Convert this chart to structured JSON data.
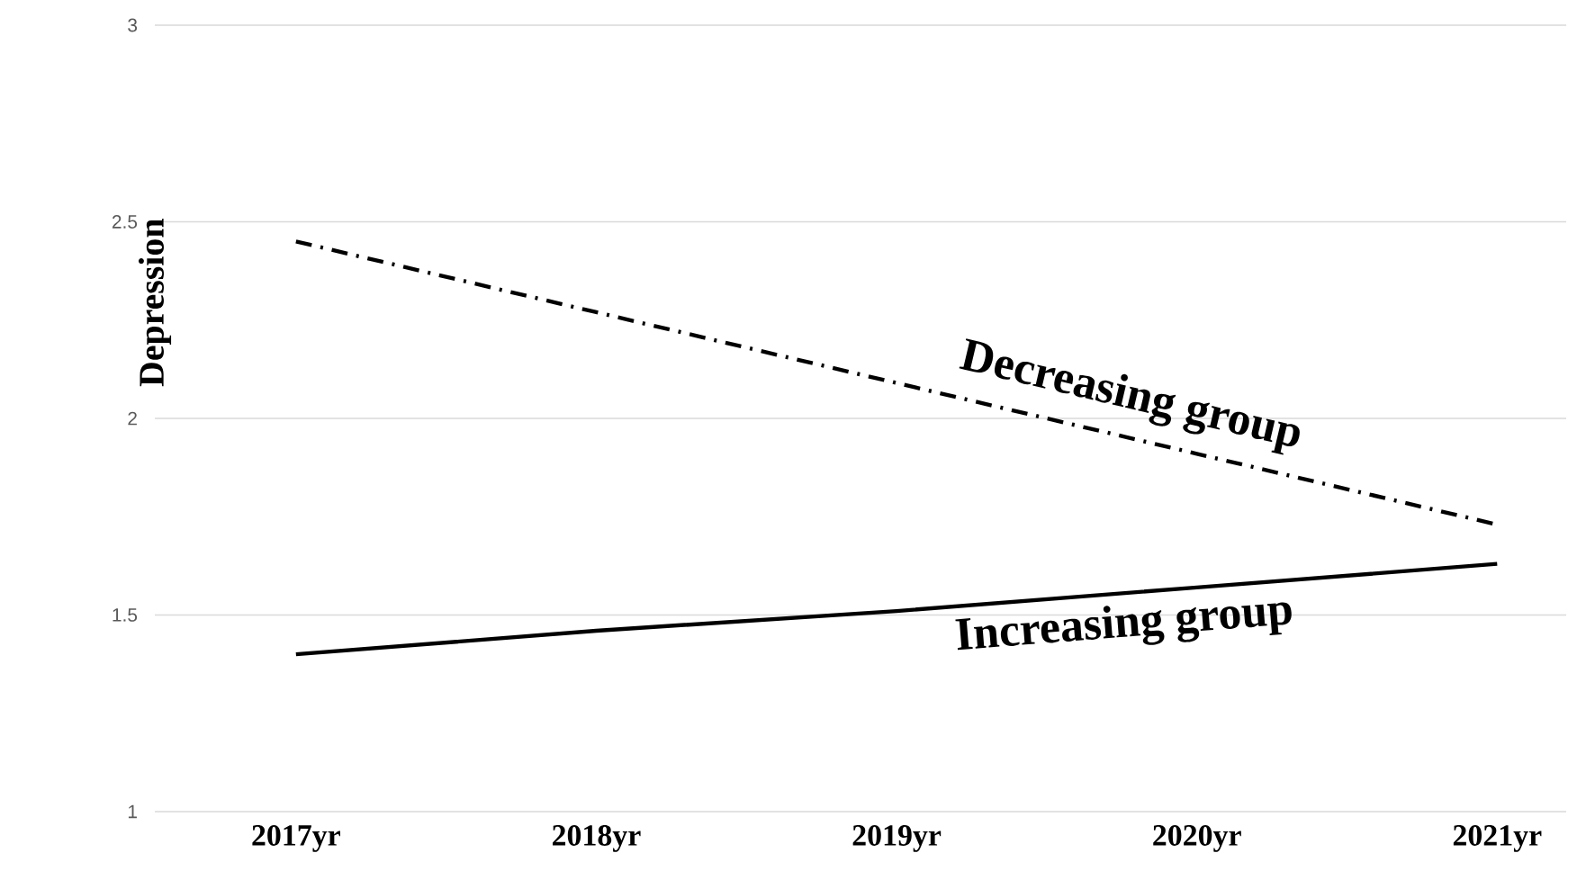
{
  "chart_data": {
    "type": "line",
    "ylabel": "Depression",
    "categories": [
      "2017yr",
      "2018yr",
      "2019yr",
      "2020yr",
      "2021yr"
    ],
    "series": [
      {
        "name": "Decreasing group",
        "color": "#000000",
        "line_style": "dashdot",
        "values": [
          2.45,
          2.27,
          2.09,
          1.91,
          1.73
        ]
      },
      {
        "name": "Increasing group",
        "color": "#000000",
        "line_style": "solid",
        "values": [
          1.4,
          1.46,
          1.51,
          1.57,
          1.63
        ]
      }
    ],
    "ylim": [
      1,
      3
    ],
    "yticks": [
      1,
      1.5,
      2,
      2.5,
      3
    ],
    "grid": "y",
    "legend": false,
    "marker": "none"
  }
}
